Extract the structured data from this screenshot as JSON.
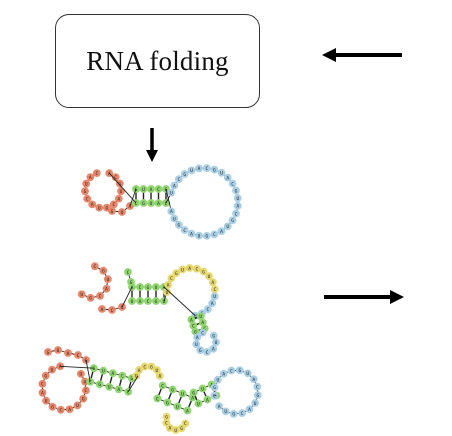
{
  "box": {
    "label": "RNA folding"
  },
  "colors": {
    "red": "#e8866a",
    "green": "#8fd66f",
    "blue": "#a9cfe6",
    "yellow": "#e6d86e",
    "stroke": "#222222",
    "arrow": "#000000"
  },
  "structures": [
    {
      "name": "structure-1",
      "regions": [
        "red",
        "green",
        "blue"
      ]
    },
    {
      "name": "structure-2",
      "regions": [
        "red",
        "green",
        "yellow",
        "blue"
      ]
    },
    {
      "name": "structure-3",
      "regions": [
        "red",
        "green",
        "yellow",
        "blue"
      ]
    }
  ]
}
